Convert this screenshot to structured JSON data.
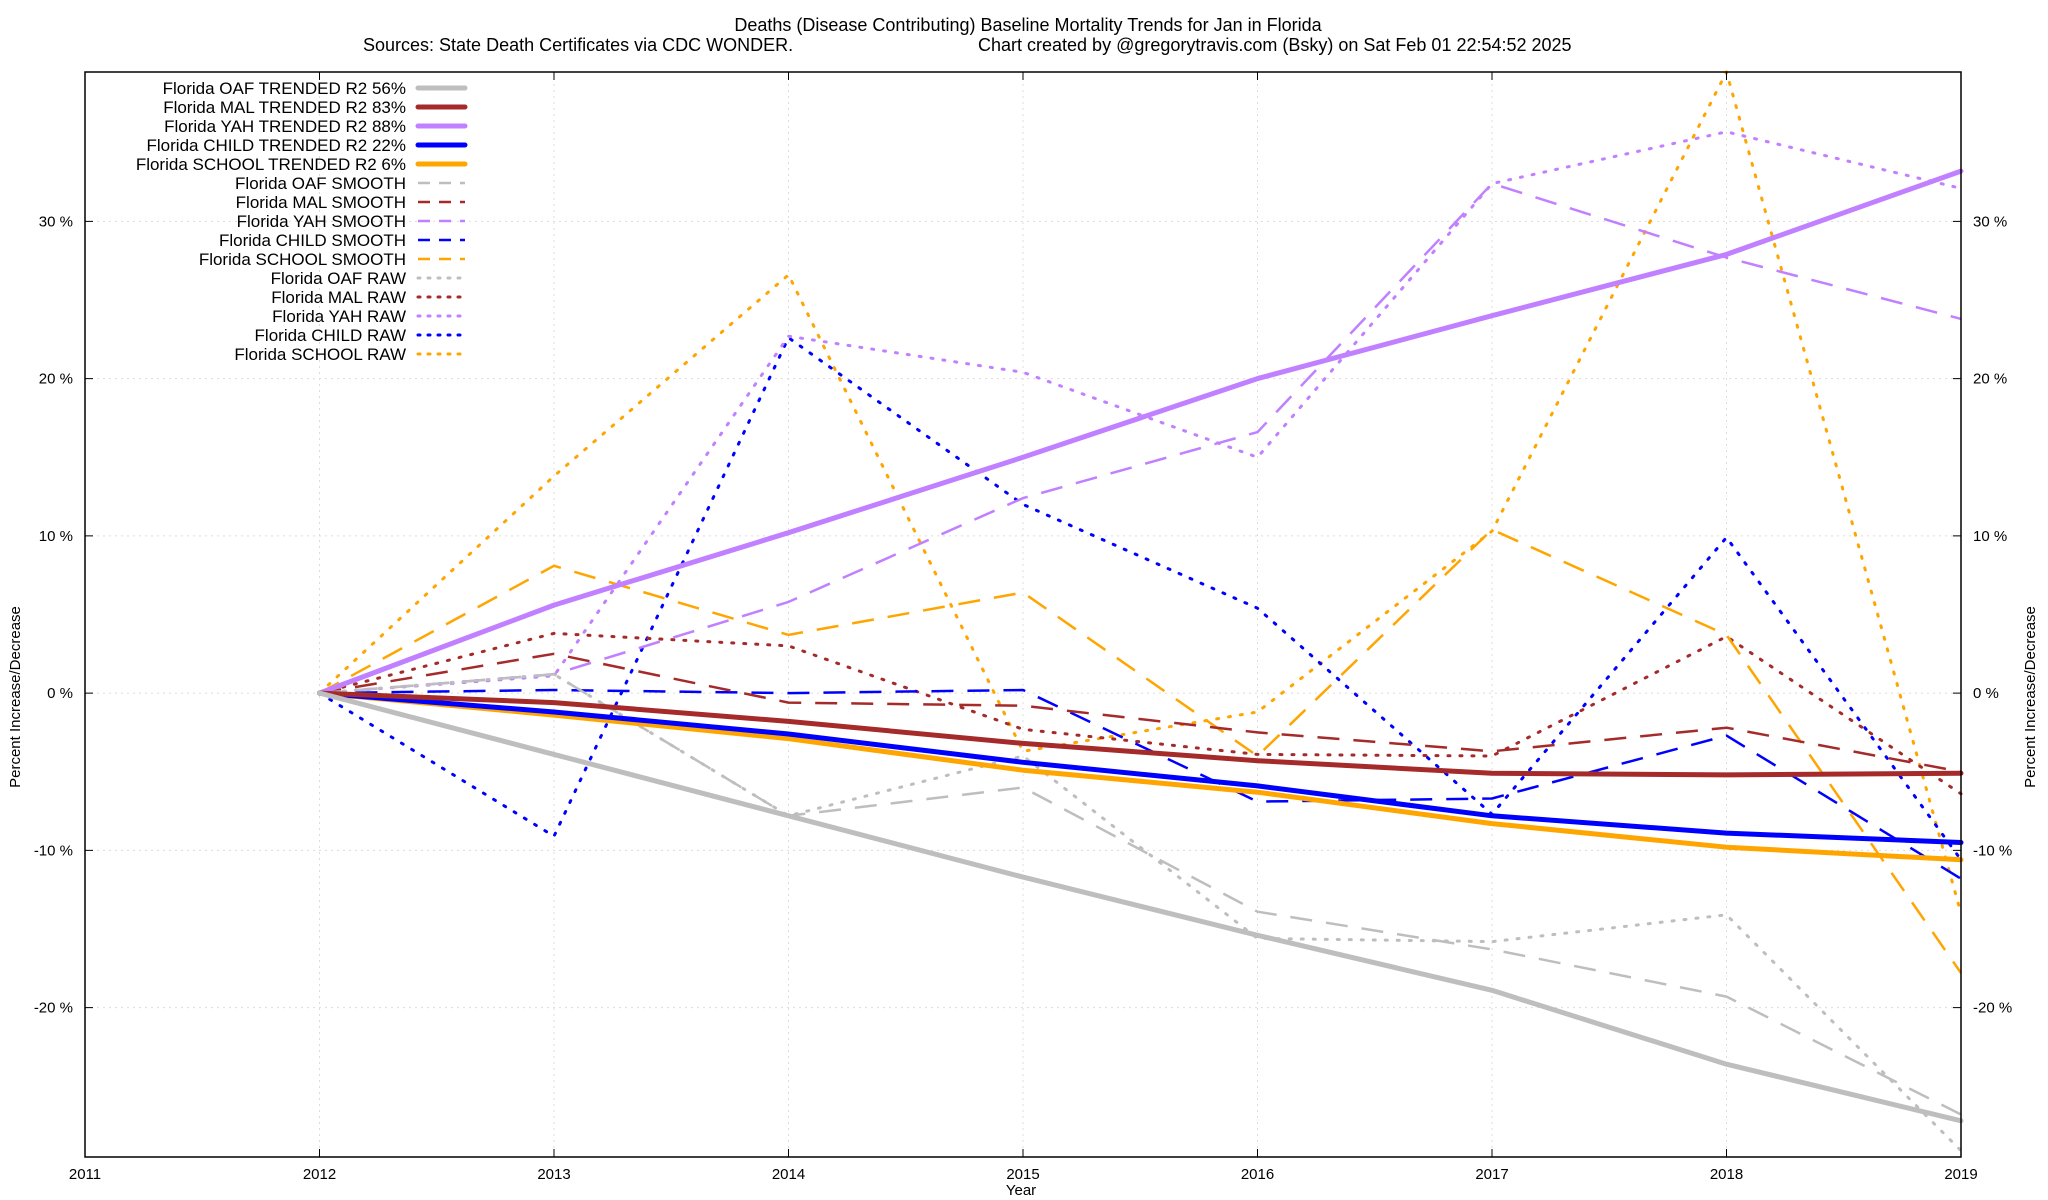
{
  "chart_data": {
    "type": "line",
    "title": "Deaths (Disease Contributing)  Baseline Mortality Trends for Jan in Florida",
    "subtitle_left": "Sources: State Death Certificates via CDC WONDER.",
    "subtitle_right": "Chart created by @gregorytravis.com (Bsky) on Sat Feb 01 22:54:52 2025",
    "xlabel": "Year",
    "ylabel_left": "Percent Increase/Decrease",
    "ylabel_right": "Percent Increase/Decrease",
    "xlim": [
      2011,
      2019
    ],
    "ylim": [
      -29.5,
      39.5
    ],
    "x_ticks": [
      2011,
      2012,
      2013,
      2014,
      2015,
      2016,
      2017,
      2018,
      2019
    ],
    "x_tick_labels": [
      "2011",
      "2012",
      "2013",
      "2014",
      "2015",
      "2016",
      "2017",
      "2018",
      "2019"
    ],
    "y_ticks": [
      -20,
      -10,
      0,
      10,
      20,
      30
    ],
    "y_tick_labels": [
      "-20 %",
      "-10 %",
      "0 %",
      "10 %",
      "20 %",
      "30 %"
    ],
    "grid": true,
    "legend_position": "top-left",
    "x": [
      2012,
      2013,
      2014,
      2015,
      2016,
      2017,
      2018,
      2019
    ],
    "series": [
      {
        "name": "Florida OAF TRENDED R2  56%",
        "color": "#bebebe",
        "style": "solid",
        "values": [
          0,
          -3.9,
          -7.8,
          -11.7,
          -15.4,
          -18.9,
          -23.6,
          -27.2
        ]
      },
      {
        "name": "Florida MAL TRENDED R2  83%",
        "color": "#a52a2a",
        "style": "solid",
        "values": [
          0,
          -0.6,
          -1.8,
          -3.2,
          -4.3,
          -5.1,
          -5.2,
          -5.1
        ]
      },
      {
        "name": "Florida YAH TRENDED R2  88%",
        "color": "#c080ff",
        "style": "solid",
        "values": [
          0,
          5.6,
          10.2,
          15.0,
          20.0,
          24.0,
          27.9,
          33.2
        ]
      },
      {
        "name": "Florida CHILD TRENDED R2  22%",
        "color": "#0000ff",
        "style": "solid",
        "values": [
          0,
          -1.2,
          -2.6,
          -4.4,
          -5.9,
          -7.8,
          -8.9,
          -9.5
        ]
      },
      {
        "name": "Florida SCHOOL TRENDED R2   6%",
        "color": "#ffa500",
        "style": "solid",
        "values": [
          0,
          -1.4,
          -2.9,
          -4.9,
          -6.3,
          -8.3,
          -9.8,
          -10.6
        ]
      },
      {
        "name": "Florida OAF SMOOTH",
        "color": "#bebebe",
        "style": "dash",
        "values": [
          0,
          1.2,
          -7.8,
          -6.0,
          -13.9,
          -16.3,
          -19.3,
          -26.8
        ]
      },
      {
        "name": "Florida MAL SMOOTH",
        "color": "#a52a2a",
        "style": "dash",
        "values": [
          0,
          2.5,
          -0.6,
          -0.8,
          -2.5,
          -3.7,
          -2.2,
          -5.0
        ]
      },
      {
        "name": "Florida YAH SMOOTH",
        "color": "#c080ff",
        "style": "dash",
        "values": [
          0,
          1.2,
          5.8,
          12.4,
          16.6,
          32.4,
          27.7,
          23.8
        ]
      },
      {
        "name": "Florida CHILD SMOOTH",
        "color": "#0000ff",
        "style": "dash",
        "values": [
          0,
          0.2,
          0.0,
          0.2,
          -6.9,
          -6.7,
          -2.7,
          -11.8
        ]
      },
      {
        "name": "Florida SCHOOL SMOOTH",
        "color": "#ffa500",
        "style": "dash",
        "values": [
          0,
          8.1,
          3.7,
          6.4,
          -4.0,
          10.4,
          3.7,
          -17.8
        ]
      },
      {
        "name": "Florida OAF RAW",
        "color": "#bebebe",
        "style": "dot",
        "values": [
          0,
          1.2,
          -7.8,
          -4.0,
          -15.6,
          -15.8,
          -14.1,
          -29.1
        ]
      },
      {
        "name": "Florida MAL RAW",
        "color": "#a52a2a",
        "style": "dot",
        "values": [
          0,
          3.8,
          3.0,
          -2.3,
          -3.9,
          -4.0,
          3.6,
          -6.4
        ]
      },
      {
        "name": "Florida YAH RAW",
        "color": "#c080ff",
        "style": "dot",
        "values": [
          0,
          1.1,
          22.7,
          20.4,
          15.0,
          32.4,
          35.7,
          32.1
        ]
      },
      {
        "name": "Florida CHILD RAW",
        "color": "#0000ff",
        "style": "dot",
        "values": [
          0,
          -9.1,
          22.6,
          12.0,
          5.4,
          -7.7,
          9.9,
          -10.6
        ]
      },
      {
        "name": "Florida SCHOOL RAW",
        "color": "#ffa500",
        "style": "dot",
        "values": [
          0,
          13.8,
          26.6,
          -3.7,
          -1.2,
          10.3,
          39.5,
          -14.0
        ]
      }
    ]
  }
}
